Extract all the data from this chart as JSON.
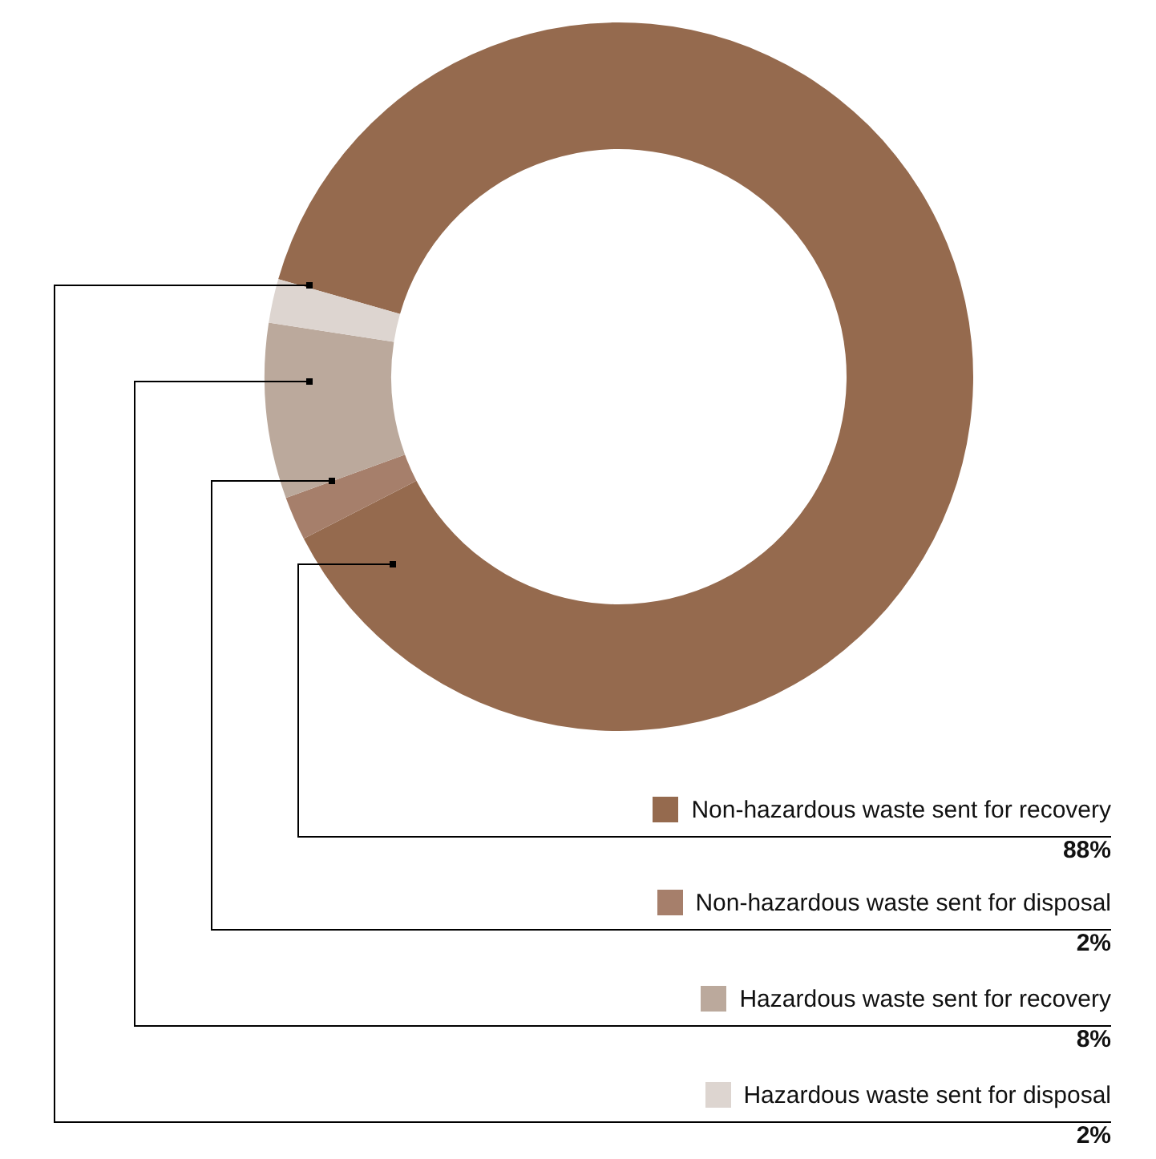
{
  "chart_data": {
    "type": "donut",
    "categories": [
      "Non-hazardous waste sent for recovery",
      "Non-hazardous waste sent for disposal",
      "Hazardous waste sent for recovery",
      "Hazardous waste sent for disposal"
    ],
    "values": [
      88,
      2,
      8,
      2
    ],
    "colors": [
      "#956a4e",
      "#a67f6b",
      "#bba99c",
      "#ddd5d0"
    ],
    "value_labels": [
      "88%",
      "2%",
      "8%",
      "2%"
    ],
    "legend": "bottom right"
  }
}
